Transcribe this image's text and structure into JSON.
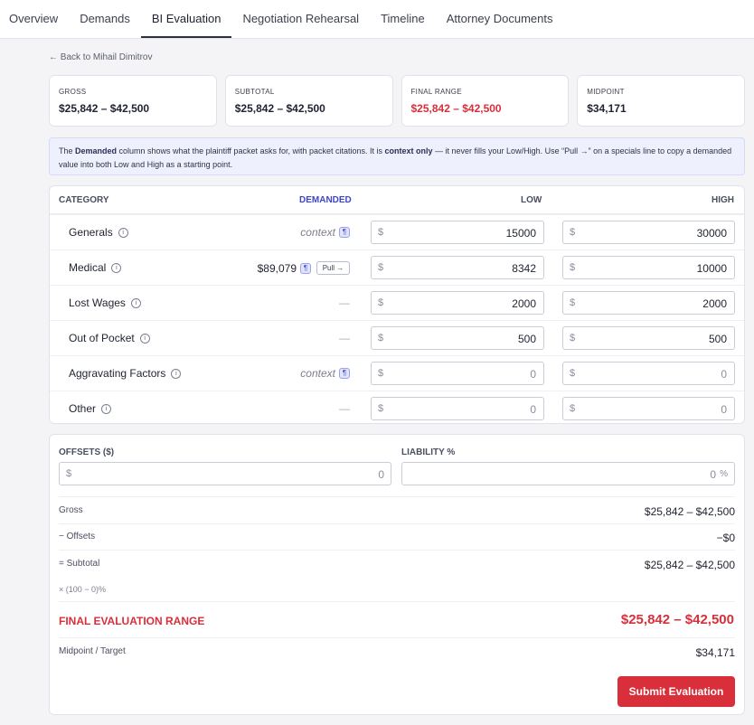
{
  "tabs": [
    "Overview",
    "Demands",
    "BI Evaluation",
    "Negotiation Rehearsal",
    "Timeline",
    "Attorney Documents"
  ],
  "back_link": "← Back to Mihail Dimitrov",
  "cards": [
    {
      "label": "GROSS",
      "value": "$25,842 – $42,500"
    },
    {
      "label": "SUBTOTAL",
      "value": "$25,842 – $42,500"
    },
    {
      "label": "FINAL RANGE",
      "value": "$25,842 – $42,500"
    },
    {
      "label": "MIDPOINT",
      "value": "$34,171"
    }
  ],
  "note": {
    "t1": "The ",
    "b1": "Demanded",
    "t2": " column shows what the plaintiff packet asks for, with packet citations. It is ",
    "b2": "context only",
    "t3": " — it never fills your Low/High. Use “Pull →” on a specials line to copy a demanded value into both Low and High as a starting point."
  },
  "table": {
    "headers": {
      "category": "CATEGORY",
      "demanded": "DEMANDED",
      "low": "LOW",
      "high": "HIGH"
    },
    "currency": "$",
    "info_glyph": "i",
    "para_glyph": "¶",
    "pull_label": "Pull →",
    "rows": [
      {
        "name": "Generals",
        "demanded": "context",
        "low": "15000",
        "high": "30000"
      },
      {
        "name": "Medical",
        "demanded": "$89,079",
        "low": "8342",
        "high": "10000"
      },
      {
        "name": "Lost Wages",
        "demanded": "—",
        "low": "2000",
        "high": "2000"
      },
      {
        "name": "Out of Pocket",
        "demanded": "—",
        "low": "500",
        "high": "500"
      },
      {
        "name": "Aggravating Factors",
        "demanded": "context",
        "low": "0",
        "high": "0"
      },
      {
        "name": "Other",
        "demanded": "—",
        "low": "0",
        "high": "0"
      }
    ]
  },
  "offsets": {
    "label": "OFFSETS ($)",
    "currency": "$",
    "value": "0"
  },
  "liability": {
    "label": "LIABILITY %",
    "value": "0",
    "suffix": "%"
  },
  "summary": {
    "gross_label": "Gross",
    "gross_value": "$25,842 – $42,500",
    "offsets_label": "− Offsets",
    "offsets_value": "−$0",
    "subtotal_label": "= Subtotal",
    "subtotal_value": "$25,842 – $42,500",
    "factor_label": "× (100 − 0)%",
    "final_label": "FINAL EVALUATION RANGE",
    "final_value": "$25,842 – $42,500",
    "midpoint_label": "Midpoint / Target",
    "midpoint_value": "$34,171"
  },
  "submit_label": "Submit Evaluation",
  "colors": {
    "accent_red": "#d92f3a",
    "accent_blue": "#3d45c9"
  }
}
